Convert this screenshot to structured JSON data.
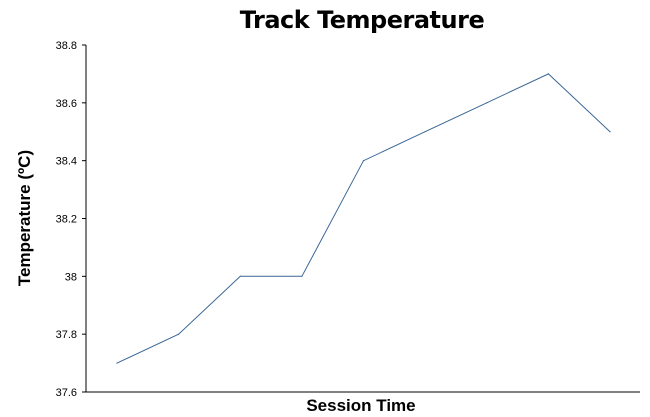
{
  "chart_data": {
    "type": "line",
    "title": "Track Temperature",
    "xlabel": "Session Time",
    "ylabel": "Temperature (ºC)",
    "ylim": [
      37.6,
      38.8
    ],
    "yticks": [
      "37.6",
      "37.8",
      "38",
      "38.2",
      "38.4",
      "38.6",
      "38.8"
    ],
    "x_tick_labels_shown": false,
    "grid": false,
    "legend": "none",
    "series": [
      {
        "color": "#3a6796",
        "values": [
          37.7,
          37.8,
          38.0,
          38.0,
          38.4,
          38.5,
          38.6,
          38.7,
          38.5
        ]
      }
    ]
  }
}
